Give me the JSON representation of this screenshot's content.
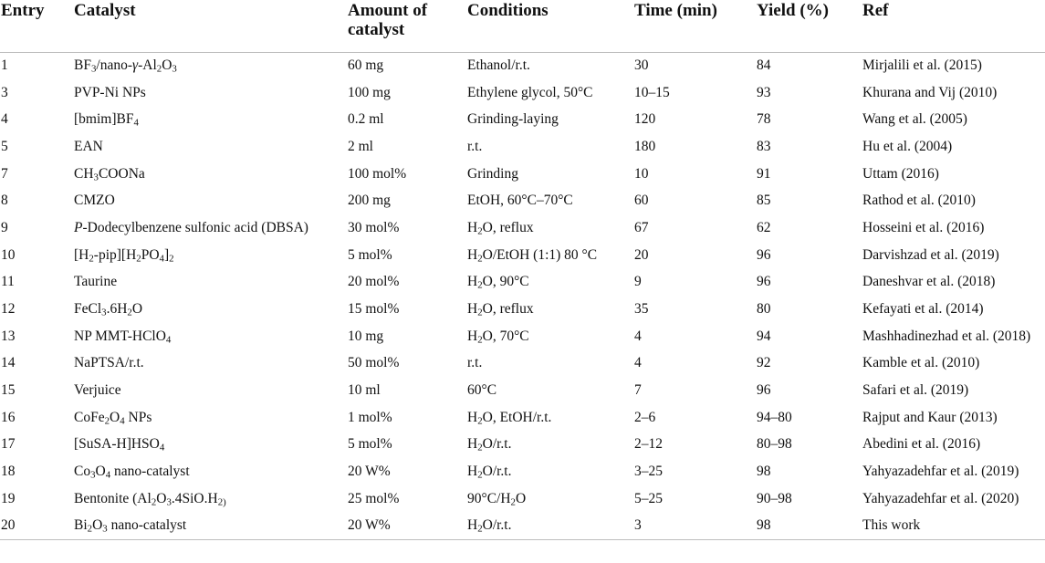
{
  "headers": [
    "Entry",
    "Catalyst",
    "Amount of catalyst",
    "Conditions",
    "Time (min)",
    "Yield (%)",
    "Ref"
  ],
  "rows": [
    {
      "entry": "1",
      "catalyst": "BF<sub>3</sub>/nano-<i>γ</i>-Al<sub>2</sub>O<sub>3</sub>",
      "amount": "60 mg",
      "conditions": "Ethanol/r.t.",
      "time": "30",
      "yield": "84",
      "ref": "Mirjalili et al. (2015)"
    },
    {
      "entry": "3",
      "catalyst": "PVP-Ni NPs",
      "amount": "100 mg",
      "conditions": "Ethylene glycol, 50°C",
      "time": "10–15",
      "yield": "93",
      "ref": "Khurana and Vij (2010)"
    },
    {
      "entry": "4",
      "catalyst": "[bmim]BF<sub>4</sub>",
      "amount": "0.2 ml",
      "conditions": "Grinding-laying",
      "time": "120",
      "yield": "78",
      "ref": "Wang et al. (2005)"
    },
    {
      "entry": "5",
      "catalyst": "EAN",
      "amount": "2 ml",
      "conditions": "r.t.",
      "time": "180",
      "yield": "83",
      "ref": "Hu et al. (2004)"
    },
    {
      "entry": "7",
      "catalyst": "CH<sub>3</sub>COONa",
      "amount": "100 mol%",
      "conditions": "Grinding",
      "time": "10",
      "yield": "91",
      "ref": "Uttam (2016)"
    },
    {
      "entry": "8",
      "catalyst": "CMZO",
      "amount": "200 mg",
      "conditions": "EtOH, 60°C–70°C",
      "time": "60",
      "yield": "85",
      "ref": "Rathod et al. (2010)"
    },
    {
      "entry": "9",
      "catalyst": "<i>P</i>-Dodecylbenzene sulfonic acid (DBSA)",
      "amount": "30 mol%",
      "conditions": "H<sub>2</sub>O, reflux",
      "time": "67",
      "yield": "62",
      "ref": "Hosseini et al. (2016)"
    },
    {
      "entry": "10",
      "catalyst": "[H<sub>2</sub>-pip][H<sub>2</sub>PO<sub>4</sub>]<sub>2</sub>",
      "amount": "5 mol%",
      "conditions": "H<sub>2</sub>O/EtOH (1:1) 80 °C",
      "time": "20",
      "yield": "96",
      "ref": "Darvishzad et al. (2019)"
    },
    {
      "entry": "11",
      "catalyst": "Taurine",
      "amount": "20 mol%",
      "conditions": "H<sub>2</sub>O, 90°C",
      "time": "9",
      "yield": "96",
      "ref": "Daneshvar et al. (2018)"
    },
    {
      "entry": "12",
      "catalyst": "FeCl<sub>3</sub>.6H<sub>2</sub>O",
      "amount": "15 mol%",
      "conditions": "H<sub>2</sub>O, reflux",
      "time": "35",
      "yield": "80",
      "ref": "Kefayati et al. (2014)"
    },
    {
      "entry": "13",
      "catalyst": "NP MMT-HClO<sub>4</sub>",
      "amount": "10 mg",
      "conditions": "H<sub>2</sub>O, 70°C",
      "time": "4",
      "yield": "94",
      "ref": "Mashhadinezhad et al. (2018)"
    },
    {
      "entry": "14",
      "catalyst": "NaPTSA/r.t.",
      "amount": "50 mol%",
      "conditions": "r.t.",
      "time": "4",
      "yield": "92",
      "ref": "Kamble et al. (2010)"
    },
    {
      "entry": "15",
      "catalyst": "Verjuice",
      "amount": "10 ml",
      "conditions": "60°C",
      "time": "7",
      "yield": "96",
      "ref": "Safari et al. (2019)"
    },
    {
      "entry": "16",
      "catalyst": "CoFe<sub>2</sub>O<sub>4</sub> NPs",
      "amount": "1 mol%",
      "conditions": "H<sub>2</sub>O, EtOH/r.t.",
      "time": "2–6",
      "yield": "94–80",
      "ref": "Rajput and Kaur (2013)"
    },
    {
      "entry": "17",
      "catalyst": "[SuSA-H]HSO<sub>4</sub>",
      "amount": "5 mol%",
      "conditions": "H<sub>2</sub>O/r.t.",
      "time": "2–12",
      "yield": "80–98",
      "ref": "Abedini et al. (2016)"
    },
    {
      "entry": "18",
      "catalyst": "Co<sub>3</sub>O<sub>4</sub> nano-catalyst",
      "amount": "20 W%",
      "conditions": "H<sub>2</sub>O/r.t.",
      "time": "3–25",
      "yield": "98",
      "ref": "Yahyazadehfar et al. (2019)"
    },
    {
      "entry": "19",
      "catalyst": "Bentonite (Al<sub>2</sub>O<sub>3</sub>.4SiO.H<sub>2)</sub>",
      "amount": "25 mol%",
      "conditions": "90°C/H<sub>2</sub>O",
      "time": "5–25",
      "yield": "90–98",
      "ref": "Yahyazadehfar et al. (2020)"
    },
    {
      "entry": "20",
      "catalyst": "Bi<sub>2</sub>O<sub>3</sub> nano-catalyst",
      "amount": "20 W%",
      "conditions": "H<sub>2</sub>O/r.t.",
      "time": "3",
      "yield": "98",
      "ref": "This work"
    }
  ]
}
